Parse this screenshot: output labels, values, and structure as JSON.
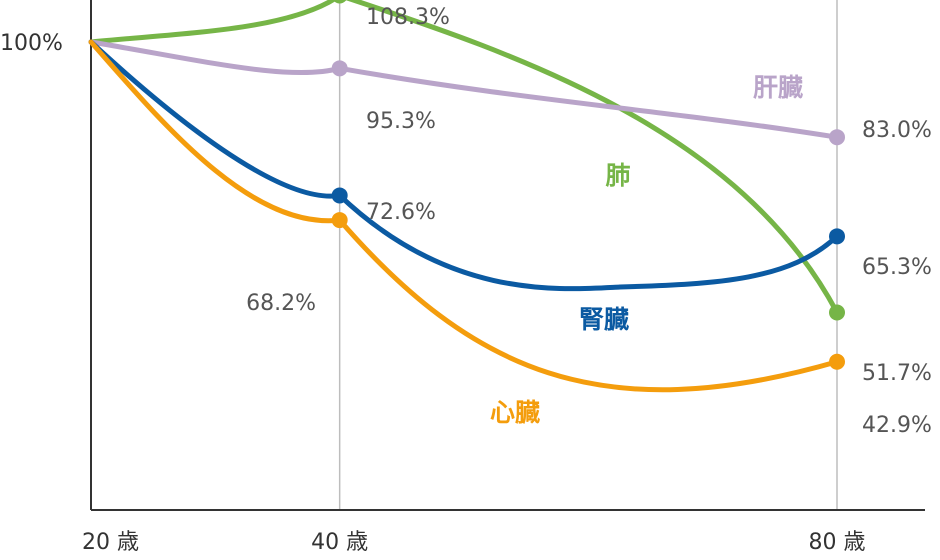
{
  "chart_data": {
    "type": "line",
    "x": [
      20,
      40,
      80
    ],
    "x_tick_labels": [
      "20 歳",
      "40 歳",
      "80 歳"
    ],
    "y_tick_labels": [
      "100%"
    ],
    "xlim": [
      20,
      80
    ],
    "ylim": [
      20,
      110
    ],
    "grid": "vertical lines at 40 and 80",
    "series": [
      {
        "name": "肺",
        "color": "#76b547",
        "values": [
          100,
          108.3,
          51.7
        ],
        "labels": [
          "",
          "108.3%",
          "51.7%"
        ]
      },
      {
        "name": "肝臓",
        "color": "#b9a4c9",
        "values": [
          100,
          95.3,
          83.0
        ],
        "labels": [
          "",
          "95.3%",
          "83.0%"
        ]
      },
      {
        "name": "腎臓",
        "color": "#0b5aa2",
        "values": [
          100,
          72.6,
          65.3
        ],
        "labels": [
          "",
          "72.6%",
          "65.3%"
        ]
      },
      {
        "name": "心臓",
        "color": "#f49d0d",
        "values": [
          100,
          68.2,
          42.9
        ],
        "labels": [
          "",
          "68.2%",
          "42.9%"
        ]
      }
    ]
  }
}
